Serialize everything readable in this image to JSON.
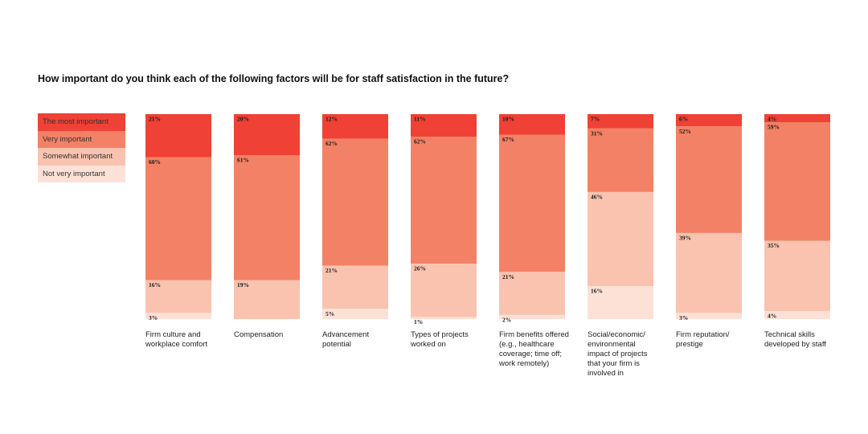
{
  "title": "How important do you think each of the following factors will be for staff satisfaction in the future?",
  "chart_data": {
    "type": "bar",
    "stacked": true,
    "ylim": [
      0,
      100
    ],
    "legend_position": "left",
    "series": [
      {
        "name": "The most important",
        "color": "#ef4135",
        "values": [
          21,
          20,
          12,
          11,
          10,
          7,
          6,
          4
        ]
      },
      {
        "name": "Very important",
        "color": "#f38166",
        "values": [
          60,
          61,
          62,
          62,
          67,
          31,
          52,
          59
        ]
      },
      {
        "name": "Somewhat important",
        "color": "#f9c3b0",
        "values": [
          16,
          19,
          21,
          26,
          21,
          46,
          39,
          35
        ]
      },
      {
        "name": "Not very important",
        "color": "#fde1d7",
        "values": [
          3,
          0,
          5,
          1,
          2,
          16,
          3,
          4
        ]
      }
    ],
    "labels": [
      [
        "21%",
        "60%",
        "16%",
        "3%"
      ],
      [
        "20%",
        "61%",
        "19%",
        ""
      ],
      [
        "12%",
        "62%",
        "21%",
        "5%"
      ],
      [
        "11%",
        "62%",
        "26%",
        "1%"
      ],
      [
        "10%",
        "67%",
        "21%",
        "2%"
      ],
      [
        "7%",
        "31%",
        "46%",
        "16%"
      ],
      [
        "6%",
        "52%",
        "39%",
        "3%"
      ],
      [
        "4%",
        "59%",
        "35%",
        "4%"
      ]
    ],
    "categories": [
      "Firm culture and workplace comfort",
      "Compensation",
      "Advancement potential",
      "Types of projects worked on",
      "Firm benefits offered (e.g., healthcare coverage; time off; work remotely)",
      "Social/economic/ environmental impact of projects that your firm is involved in",
      "Firm reputation/ prestige",
      "Technical skills developed by staff"
    ]
  }
}
